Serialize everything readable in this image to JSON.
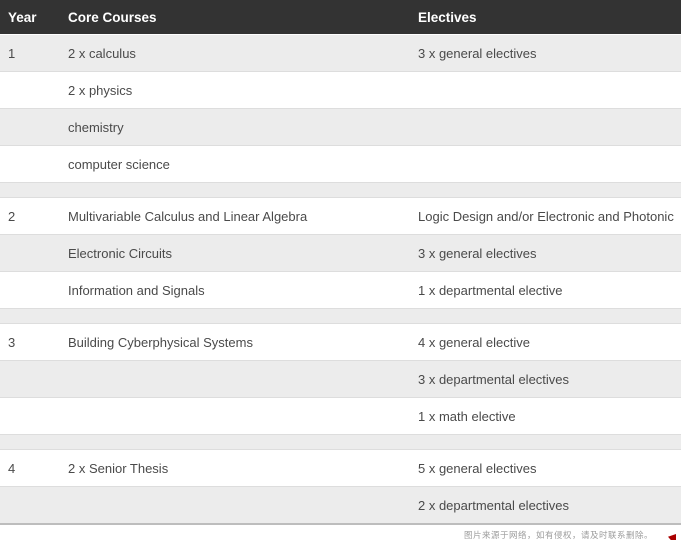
{
  "table": {
    "columns": [
      {
        "key": "year",
        "label": "Year"
      },
      {
        "key": "core",
        "label": "Core Courses"
      },
      {
        "key": "electives",
        "label": "Electives"
      }
    ],
    "rows": [
      {
        "type": "normal",
        "year": "1",
        "core": "2 x calculus",
        "electives": "3 x general electives"
      },
      {
        "type": "normal",
        "year": "",
        "core": "2 x physics",
        "electives": ""
      },
      {
        "type": "normal",
        "year": "",
        "core": "chemistry",
        "electives": ""
      },
      {
        "type": "normal",
        "year": "",
        "core": "computer science",
        "electives": ""
      },
      {
        "type": "spacer"
      },
      {
        "type": "normal",
        "year": "2",
        "core": "Multivariable Calculus and Linear Algebra",
        "electives": "Logic Design and/or Electronic and Photonic"
      },
      {
        "type": "normal",
        "year": "",
        "core": "Electronic Circuits",
        "electives": "3 x general electives"
      },
      {
        "type": "normal",
        "year": "",
        "core": "Information and Signals",
        "electives": "1 x departmental elective"
      },
      {
        "type": "spacer"
      },
      {
        "type": "normal",
        "year": "3",
        "core": "Building Cyberphysical Systems",
        "electives": "4 x general elective"
      },
      {
        "type": "normal",
        "year": "",
        "core": "",
        "electives": "3 x departmental electives"
      },
      {
        "type": "normal",
        "year": "",
        "core": "",
        "electives": "1 x math elective"
      },
      {
        "type": "spacer"
      },
      {
        "type": "normal",
        "year": "4",
        "core": "2 x Senior Thesis",
        "electives": "5 x general electives"
      },
      {
        "type": "normal",
        "year": "",
        "core": "",
        "electives": "2 x departmental electives"
      }
    ]
  },
  "footer": {
    "disclaimer": "图片来源于网络，如有侵权，请及时联系删除。"
  },
  "colors": {
    "header_bg": "#333333",
    "header_text": "#ffffff",
    "row_alt_bg": "#ececec",
    "row_bg": "#ffffff",
    "body_text": "#4a4a4a",
    "row_border": "#dddddd",
    "table_bottom_border": "#bdbdbd",
    "footer_text": "#9c9c9c",
    "watermark_red": "#aa0000"
  }
}
